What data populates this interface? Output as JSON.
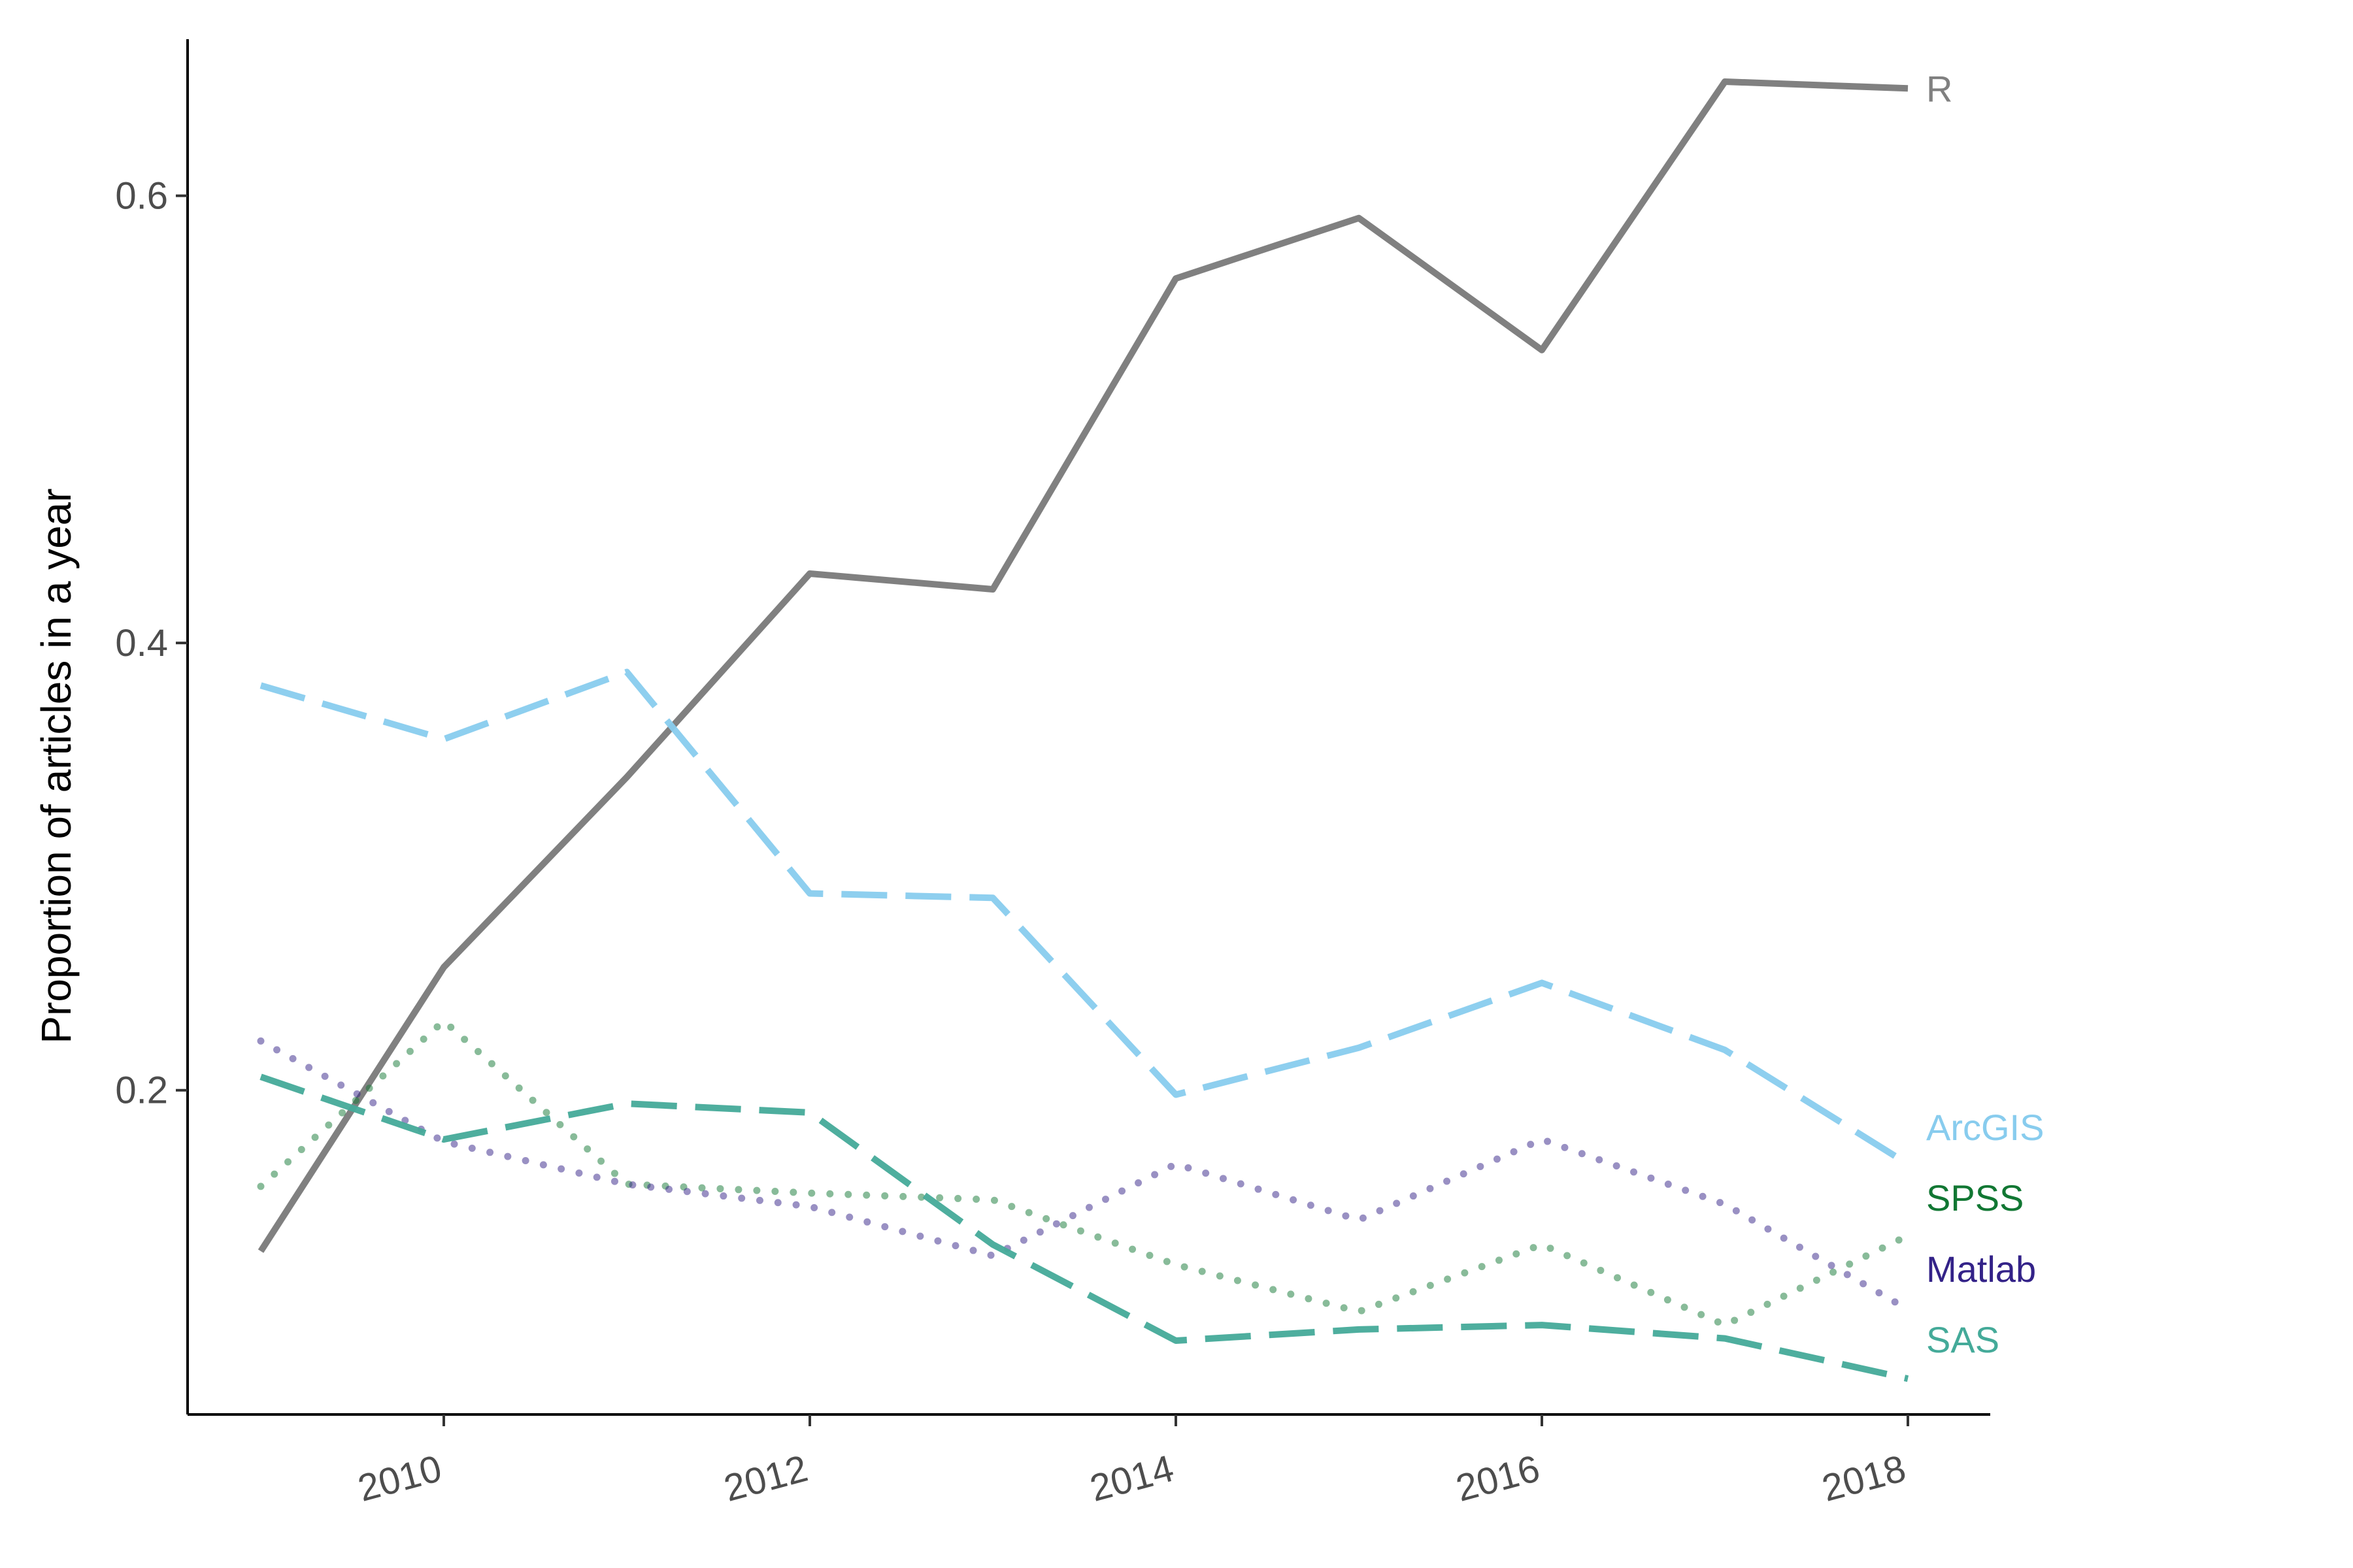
{
  "chart_data": {
    "type": "line",
    "title": "",
    "xlabel": "",
    "ylabel": "Proportion of articles in a year",
    "x": [
      2009,
      2010,
      2011,
      2012,
      2013,
      2014,
      2015,
      2016,
      2017,
      2018
    ],
    "xticks": [
      "2010",
      "2012",
      "2014",
      "2016",
      "2018"
    ],
    "xlim": [
      2008.6,
      2018.45
    ],
    "ylim": [
      0.055,
      0.67
    ],
    "yticks": [
      "0.2",
      "0.4",
      "0.6"
    ],
    "grid": false,
    "legend": "direct labels at right end of lines",
    "series": [
      {
        "name": "R",
        "color": "#808080",
        "style": "solid",
        "values": [
          0.128,
          0.255,
          0.34,
          0.431,
          0.424,
          0.563,
          0.59,
          0.531,
          0.651,
          0.648
        ]
      },
      {
        "name": "ArcGIS",
        "color": "#88ccee",
        "style": "dashed",
        "values": [
          0.381,
          0.357,
          0.387,
          0.288,
          0.286,
          0.198,
          0.219,
          0.248,
          0.218,
          0.167
        ]
      },
      {
        "name": "SPSS",
        "color": "#117733",
        "style": "dotted",
        "values": [
          0.157,
          0.231,
          0.158,
          0.154,
          0.151,
          0.122,
          0.101,
          0.131,
          0.095,
          0.135
        ]
      },
      {
        "name": "Matlab",
        "color": "#332288",
        "style": "dotted",
        "values": [
          0.222,
          0.177,
          0.158,
          0.148,
          0.126,
          0.167,
          0.142,
          0.178,
          0.149,
          0.102
        ]
      },
      {
        "name": "SAS",
        "color": "#44aa99",
        "style": "dashed",
        "values": [
          0.206,
          0.178,
          0.194,
          0.19,
          0.131,
          0.088,
          0.093,
          0.095,
          0.089,
          0.071
        ]
      }
    ]
  }
}
